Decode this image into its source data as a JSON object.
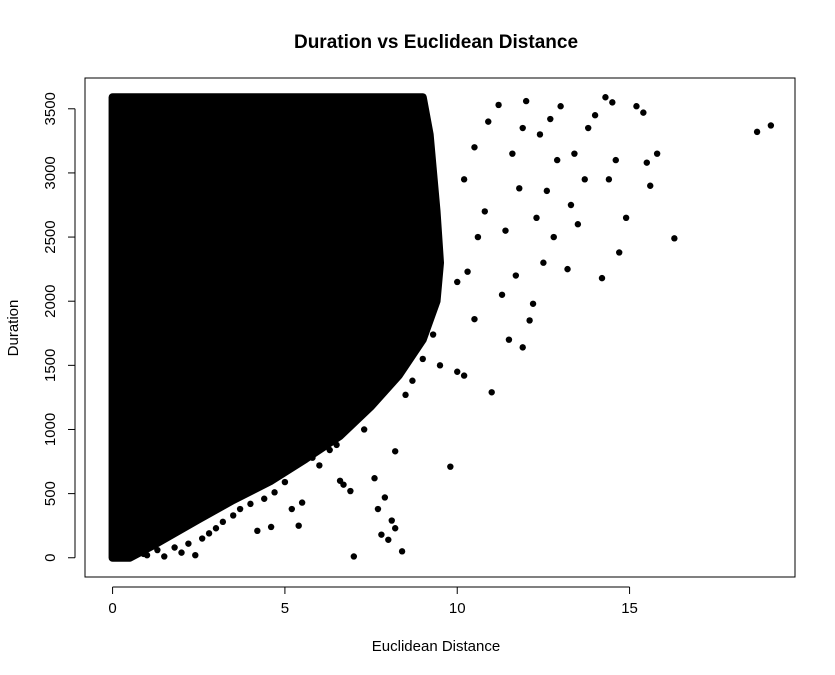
{
  "chart_data": {
    "type": "scatter",
    "title": "Duration vs Euclidean Distance",
    "xlabel": "Euclidean Distance",
    "ylabel": "Duration",
    "xlim": [
      -0.8,
      19.8
    ],
    "ylim": [
      -150,
      3740
    ],
    "x_ticks": [
      0,
      5,
      10,
      15
    ],
    "y_ticks": [
      0,
      500,
      1000,
      1500,
      2000,
      2500,
      3000,
      3500
    ],
    "grid": false,
    "colors": {
      "points": "#000000",
      "frame": "#000000",
      "background": "#ffffff"
    },
    "dense_region": {
      "polygon": [
        [
          0,
          0
        ],
        [
          0.5,
          0
        ],
        [
          1.2,
          100
        ],
        [
          2.5,
          300
        ],
        [
          3.5,
          450
        ],
        [
          4.6,
          600
        ],
        [
          5.6,
          770
        ],
        [
          6.6,
          950
        ],
        [
          7.5,
          1180
        ],
        [
          8.3,
          1420
        ],
        [
          9.0,
          1700
        ],
        [
          9.4,
          2000
        ],
        [
          9.5,
          2300
        ],
        [
          9.4,
          2700
        ],
        [
          9.2,
          3300
        ],
        [
          9.0,
          3590
        ],
        [
          0,
          3590
        ]
      ]
    },
    "points": [
      [
        0.9,
        30
      ],
      [
        1.0,
        20
      ],
      [
        1.3,
        60
      ],
      [
        1.5,
        10
      ],
      [
        1.8,
        80
      ],
      [
        2.0,
        40
      ],
      [
        2.2,
        110
      ],
      [
        2.4,
        20
      ],
      [
        2.6,
        150
      ],
      [
        2.8,
        190
      ],
      [
        3.0,
        230
      ],
      [
        3.2,
        280
      ],
      [
        3.5,
        330
      ],
      [
        3.7,
        380
      ],
      [
        4.0,
        420
      ],
      [
        4.2,
        210
      ],
      [
        4.4,
        460
      ],
      [
        4.6,
        240
      ],
      [
        4.7,
        510
      ],
      [
        5.0,
        590
      ],
      [
        5.2,
        380
      ],
      [
        5.4,
        250
      ],
      [
        5.5,
        430
      ],
      [
        5.8,
        780
      ],
      [
        6.0,
        720
      ],
      [
        6.3,
        840
      ],
      [
        6.5,
        880
      ],
      [
        6.6,
        600
      ],
      [
        6.7,
        570
      ],
      [
        6.9,
        520
      ],
      [
        7.0,
        10
      ],
      [
        7.3,
        1000
      ],
      [
        7.6,
        620
      ],
      [
        7.7,
        380
      ],
      [
        7.8,
        180
      ],
      [
        7.9,
        470
      ],
      [
        8.0,
        140
      ],
      [
        8.1,
        290
      ],
      [
        8.2,
        230
      ],
      [
        8.4,
        50
      ],
      [
        8.2,
        830
      ],
      [
        8.5,
        1270
      ],
      [
        8.7,
        1380
      ],
      [
        9.0,
        1550
      ],
      [
        9.3,
        1740
      ],
      [
        9.5,
        1500
      ],
      [
        9.8,
        710
      ],
      [
        10.0,
        1450
      ],
      [
        10.2,
        1420
      ],
      [
        10.5,
        1860
      ],
      [
        10.0,
        2150
      ],
      [
        10.3,
        2230
      ],
      [
        10.6,
        2500
      ],
      [
        10.8,
        2700
      ],
      [
        10.2,
        2950
      ],
      [
        10.5,
        3200
      ],
      [
        10.9,
        3400
      ],
      [
        11.2,
        3530
      ],
      [
        11.0,
        1290
      ],
      [
        11.5,
        1700
      ],
      [
        11.3,
        2050
      ],
      [
        11.7,
        2200
      ],
      [
        11.4,
        2550
      ],
      [
        11.8,
        2880
      ],
      [
        11.6,
        3150
      ],
      [
        11.9,
        3350
      ],
      [
        12.0,
        3560
      ],
      [
        12.2,
        1980
      ],
      [
        12.5,
        2300
      ],
      [
        12.8,
        2500
      ],
      [
        12.3,
        2650
      ],
      [
        12.6,
        2860
      ],
      [
        12.9,
        3100
      ],
      [
        12.4,
        3300
      ],
      [
        12.7,
        3420
      ],
      [
        13.0,
        3520
      ],
      [
        13.2,
        2250
      ],
      [
        13.5,
        2600
      ],
      [
        13.3,
        2750
      ],
      [
        13.7,
        2950
      ],
      [
        13.4,
        3150
      ],
      [
        13.8,
        3350
      ],
      [
        14.0,
        3450
      ],
      [
        14.2,
        2180
      ],
      [
        14.3,
        3590
      ],
      [
        14.4,
        2950
      ],
      [
        14.6,
        3100
      ],
      [
        14.5,
        3550
      ],
      [
        14.9,
        2650
      ],
      [
        14.7,
        2380
      ],
      [
        15.2,
        3520
      ],
      [
        15.4,
        3470
      ],
      [
        15.5,
        3080
      ],
      [
        15.6,
        2900
      ],
      [
        15.8,
        3150
      ],
      [
        16.3,
        2490
      ],
      [
        18.7,
        3320
      ],
      [
        19.1,
        3370
      ],
      [
        12.1,
        1850
      ],
      [
        11.9,
        1640
      ]
    ]
  }
}
